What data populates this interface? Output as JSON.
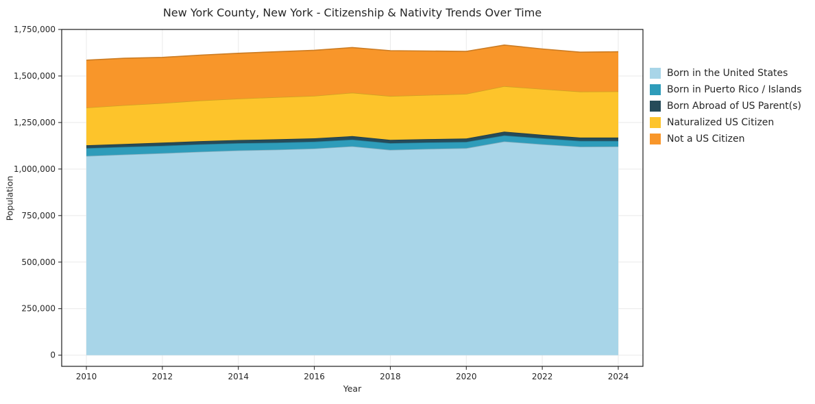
{
  "chart": {
    "title": "New York County, New York - Citizenship & Nativity Trends Over Time",
    "xlabel": "Year",
    "ylabel": "Population"
  },
  "chart_data": {
    "type": "area",
    "stacked": true,
    "title": "New York County, New York - Citizenship & Nativity Trends Over Time",
    "xlabel": "Year",
    "ylabel": "Population",
    "grid": true,
    "legend_position": "right",
    "xlim": [
      2009.35,
      2024.65
    ],
    "ylim": [
      -60000,
      1750000
    ],
    "x": [
      2010,
      2011,
      2012,
      2013,
      2014,
      2015,
      2016,
      2017,
      2018,
      2019,
      2020,
      2021,
      2022,
      2023,
      2024
    ],
    "series": [
      {
        "name": "Born in the United States",
        "color": "#a8d5e8",
        "values": [
          1070000,
          1078000,
          1085000,
          1093000,
          1100000,
          1104000,
          1110000,
          1122000,
          1103000,
          1108000,
          1112000,
          1148000,
          1133000,
          1120000,
          1121000
        ]
      },
      {
        "name": "Born in Puerto Rico / Islands",
        "color": "#2e9cba",
        "values": [
          42000,
          41000,
          40000,
          40000,
          39000,
          38000,
          37000,
          36000,
          36000,
          35000,
          34000,
          33000,
          32000,
          31000,
          30000
        ]
      },
      {
        "name": "Born Abroad of US Parent(s)",
        "color": "#264b59",
        "values": [
          16000,
          16000,
          17000,
          17000,
          17000,
          18000,
          18000,
          19000,
          18000,
          18000,
          18000,
          20000,
          19000,
          18000,
          18000
        ]
      },
      {
        "name": "Naturalized US Citizen",
        "color": "#fdc42b",
        "values": [
          202000,
          208000,
          212000,
          218000,
          222000,
          226000,
          228000,
          233000,
          235000,
          237000,
          240000,
          244000,
          246000,
          247000,
          248000
        ]
      },
      {
        "name": "Not a US Citizen",
        "color": "#f8962a",
        "values": [
          255000,
          252000,
          246000,
          244000,
          244000,
          244000,
          245000,
          243000,
          244000,
          236000,
          228000,
          221000,
          215000,
          212000,
          213000
        ]
      }
    ],
    "xticks": {
      "values": [
        2010,
        2012,
        2014,
        2016,
        2018,
        2020,
        2022,
        2024
      ],
      "labels": [
        "2010",
        "2012",
        "2014",
        "2016",
        "2018",
        "2020",
        "2022",
        "2024"
      ]
    },
    "yticks": {
      "values": [
        0,
        250000,
        500000,
        750000,
        1000000,
        1250000,
        1500000,
        1750000
      ],
      "labels": [
        "0",
        "250,000",
        "500,000",
        "750,000",
        "1,000,000",
        "1,250,000",
        "1,500,000",
        "1,750,000"
      ]
    }
  }
}
